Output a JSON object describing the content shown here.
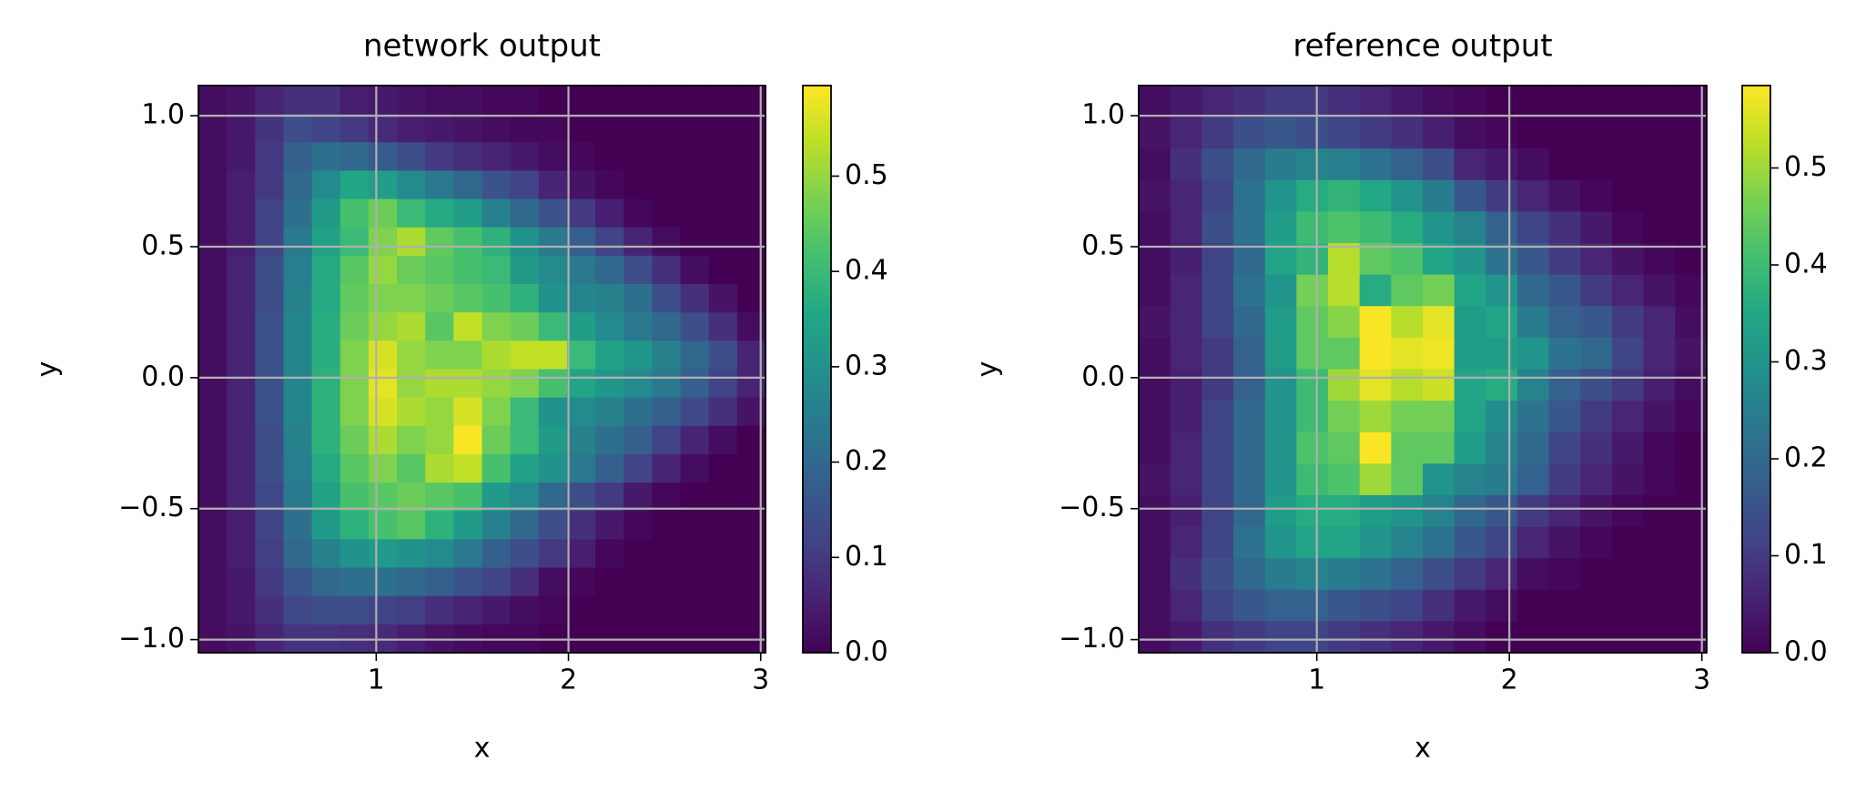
{
  "chart_data": [
    {
      "type": "heatmap",
      "title": "network output",
      "xlabel": "x",
      "ylabel": "y",
      "colormap": "viridis",
      "grid": true,
      "xlim": [
        0.075,
        3.025
      ],
      "ylim": [
        -1.05,
        1.115
      ],
      "zlim": [
        0,
        0.595
      ],
      "xticks": [
        1,
        2,
        3
      ],
      "yticks": [
        {
          "value": -1,
          "label": "−1.0"
        },
        {
          "value": -0.5,
          "label": "−0.5"
        },
        {
          "value": 0,
          "label": "0.0"
        },
        0.5,
        {
          "value": 1,
          "label": "1.0"
        }
      ],
      "cbar_ticks": [
        {
          "value": 0,
          "label": "0.0"
        },
        0.1,
        0.2,
        0.3,
        0.4,
        0.5
      ],
      "z": [
        [
          0.02,
          0.03,
          0.06,
          0.08,
          0.08,
          0.05,
          0.04,
          0.03,
          0.02,
          0.02,
          0.01,
          0.01,
          0,
          0,
          0,
          0,
          0,
          0,
          0,
          0
        ],
        [
          0.02,
          0.04,
          0.09,
          0.14,
          0.12,
          0.1,
          0.07,
          0.05,
          0.04,
          0.03,
          0.02,
          0.01,
          0.01,
          0,
          0,
          0,
          0,
          0,
          0,
          0
        ],
        [
          0.02,
          0.04,
          0.1,
          0.18,
          0.22,
          0.2,
          0.17,
          0.14,
          0.1,
          0.08,
          0.06,
          0.04,
          0.02,
          0.01,
          0,
          0,
          0,
          0,
          0,
          0
        ],
        [
          0.02,
          0.05,
          0.1,
          0.2,
          0.28,
          0.35,
          0.33,
          0.28,
          0.24,
          0.2,
          0.15,
          0.12,
          0.06,
          0.03,
          0.01,
          0,
          0,
          0,
          0,
          0
        ],
        [
          0.02,
          0.05,
          0.12,
          0.22,
          0.32,
          0.42,
          0.46,
          0.4,
          0.36,
          0.33,
          0.26,
          0.2,
          0.15,
          0.1,
          0.05,
          0.01,
          0,
          0,
          0,
          0
        ],
        [
          0.02,
          0.05,
          0.12,
          0.24,
          0.34,
          0.4,
          0.48,
          0.52,
          0.45,
          0.42,
          0.38,
          0.3,
          0.24,
          0.18,
          0.12,
          0.06,
          0.02,
          0,
          0,
          0
        ],
        [
          0.02,
          0.06,
          0.14,
          0.25,
          0.36,
          0.44,
          0.5,
          0.46,
          0.44,
          0.42,
          0.4,
          0.32,
          0.28,
          0.24,
          0.2,
          0.14,
          0.08,
          0.02,
          0,
          0
        ],
        [
          0.02,
          0.06,
          0.14,
          0.26,
          0.36,
          0.45,
          0.48,
          0.48,
          0.46,
          0.44,
          0.42,
          0.38,
          0.3,
          0.27,
          0.26,
          0.22,
          0.14,
          0.08,
          0.03,
          0
        ],
        [
          0.02,
          0.06,
          0.15,
          0.27,
          0.37,
          0.46,
          0.5,
          0.52,
          0.44,
          0.54,
          0.48,
          0.46,
          0.4,
          0.33,
          0.28,
          0.24,
          0.2,
          0.14,
          0.08,
          0.02
        ],
        [
          0.02,
          0.06,
          0.15,
          0.27,
          0.37,
          0.48,
          0.56,
          0.5,
          0.48,
          0.48,
          0.52,
          0.54,
          0.54,
          0.4,
          0.34,
          0.31,
          0.26,
          0.2,
          0.14,
          0.06
        ],
        [
          0.02,
          0.06,
          0.15,
          0.27,
          0.38,
          0.48,
          0.57,
          0.5,
          0.52,
          0.52,
          0.5,
          0.48,
          0.42,
          0.35,
          0.31,
          0.28,
          0.24,
          0.18,
          0.12,
          0.06
        ],
        [
          0.02,
          0.06,
          0.15,
          0.27,
          0.38,
          0.48,
          0.56,
          0.52,
          0.5,
          0.56,
          0.48,
          0.4,
          0.3,
          0.28,
          0.26,
          0.22,
          0.18,
          0.13,
          0.08,
          0.03
        ],
        [
          0.02,
          0.06,
          0.14,
          0.26,
          0.38,
          0.46,
          0.52,
          0.48,
          0.5,
          0.59,
          0.46,
          0.4,
          0.32,
          0.26,
          0.22,
          0.18,
          0.12,
          0.06,
          0.02,
          0
        ],
        [
          0.02,
          0.06,
          0.14,
          0.25,
          0.36,
          0.44,
          0.48,
          0.44,
          0.52,
          0.54,
          0.42,
          0.34,
          0.3,
          0.24,
          0.18,
          0.12,
          0.06,
          0.02,
          0,
          0
        ],
        [
          0.02,
          0.06,
          0.13,
          0.24,
          0.34,
          0.42,
          0.44,
          0.46,
          0.44,
          0.42,
          0.32,
          0.28,
          0.2,
          0.14,
          0.1,
          0.04,
          0.01,
          0,
          0,
          0
        ],
        [
          0.02,
          0.05,
          0.12,
          0.22,
          0.32,
          0.38,
          0.42,
          0.44,
          0.38,
          0.32,
          0.26,
          0.2,
          0.14,
          0.08,
          0.04,
          0.01,
          0,
          0,
          0,
          0
        ],
        [
          0.02,
          0.05,
          0.11,
          0.2,
          0.26,
          0.3,
          0.32,
          0.3,
          0.28,
          0.24,
          0.18,
          0.14,
          0.1,
          0.05,
          0.01,
          0,
          0,
          0,
          0,
          0
        ],
        [
          0.02,
          0.04,
          0.1,
          0.16,
          0.2,
          0.22,
          0.22,
          0.2,
          0.18,
          0.15,
          0.12,
          0.08,
          0.02,
          0.01,
          0,
          0,
          0,
          0,
          0,
          0
        ],
        [
          0.02,
          0.04,
          0.08,
          0.13,
          0.14,
          0.14,
          0.12,
          0.11,
          0.08,
          0.06,
          0.04,
          0.02,
          0.01,
          0,
          0,
          0,
          0,
          0,
          0,
          0
        ],
        [
          0.02,
          0.03,
          0.06,
          0.09,
          0.09,
          0.08,
          0.07,
          0.05,
          0.03,
          0.02,
          0.01,
          0.01,
          0,
          0,
          0,
          0,
          0,
          0,
          0,
          0
        ]
      ]
    },
    {
      "type": "heatmap",
      "title": "reference output",
      "xlabel": "x",
      "ylabel": "y",
      "colormap": "viridis",
      "grid": true,
      "xlim": [
        0.075,
        3.025
      ],
      "ylim": [
        -1.05,
        1.115
      ],
      "zlim": [
        0,
        0.585
      ],
      "xticks": [
        1,
        2,
        3
      ],
      "yticks": [
        {
          "value": -1,
          "label": "−1.0"
        },
        {
          "value": -0.5,
          "label": "−0.5"
        },
        {
          "value": 0,
          "label": "0.0"
        },
        0.5,
        {
          "value": 1,
          "label": "1.0"
        }
      ],
      "cbar_ticks": [
        {
          "value": 0,
          "label": "0.0"
        },
        0.1,
        0.2,
        0.3,
        0.4,
        0.5
      ],
      "z": [
        [
          0.02,
          0.04,
          0.06,
          0.08,
          0.1,
          0.1,
          0.08,
          0.06,
          0.04,
          0.02,
          0.01,
          0,
          0,
          0,
          0,
          0,
          0,
          0
        ],
        [
          0.03,
          0.06,
          0.1,
          0.14,
          0.16,
          0.14,
          0.12,
          0.1,
          0.08,
          0.05,
          0.02,
          0.01,
          0,
          0,
          0,
          0,
          0,
          0
        ],
        [
          0.02,
          0.08,
          0.14,
          0.2,
          0.24,
          0.26,
          0.25,
          0.22,
          0.18,
          0.14,
          0.06,
          0.04,
          0.02,
          0,
          0,
          0,
          0,
          0
        ],
        [
          0.03,
          0.06,
          0.12,
          0.22,
          0.3,
          0.36,
          0.38,
          0.35,
          0.3,
          0.24,
          0.16,
          0.1,
          0.06,
          0.03,
          0.01,
          0,
          0,
          0
        ],
        [
          0.02,
          0.06,
          0.14,
          0.22,
          0.32,
          0.4,
          0.42,
          0.4,
          0.36,
          0.3,
          0.26,
          0.18,
          0.12,
          0.08,
          0.04,
          0.01,
          0,
          0
        ],
        [
          0.02,
          0.05,
          0.12,
          0.2,
          0.34,
          0.38,
          0.52,
          0.44,
          0.42,
          0.34,
          0.3,
          0.22,
          0.16,
          0.1,
          0.06,
          0.03,
          0.01,
          0
        ],
        [
          0.02,
          0.06,
          0.12,
          0.22,
          0.3,
          0.46,
          0.52,
          0.36,
          0.44,
          0.46,
          0.34,
          0.3,
          0.2,
          0.16,
          0.1,
          0.06,
          0.03,
          0.01
        ],
        [
          0.03,
          0.06,
          0.12,
          0.2,
          0.32,
          0.44,
          0.48,
          0.58,
          0.52,
          0.56,
          0.32,
          0.34,
          0.24,
          0.18,
          0.16,
          0.1,
          0.06,
          0.02
        ],
        [
          0.02,
          0.06,
          0.1,
          0.18,
          0.32,
          0.44,
          0.44,
          0.58,
          0.56,
          0.57,
          0.32,
          0.32,
          0.3,
          0.22,
          0.2,
          0.12,
          0.06,
          0.03
        ],
        [
          0.02,
          0.05,
          0.1,
          0.18,
          0.3,
          0.4,
          0.5,
          0.56,
          0.52,
          0.54,
          0.34,
          0.36,
          0.26,
          0.18,
          0.14,
          0.1,
          0.05,
          0.02
        ],
        [
          0.02,
          0.05,
          0.12,
          0.2,
          0.3,
          0.4,
          0.46,
          0.5,
          0.46,
          0.46,
          0.34,
          0.28,
          0.22,
          0.16,
          0.1,
          0.06,
          0.03,
          0.01
        ],
        [
          0.02,
          0.06,
          0.12,
          0.2,
          0.3,
          0.42,
          0.44,
          0.58,
          0.44,
          0.44,
          0.32,
          0.26,
          0.2,
          0.12,
          0.08,
          0.04,
          0.01,
          0
        ],
        [
          0.03,
          0.06,
          0.12,
          0.2,
          0.3,
          0.4,
          0.42,
          0.5,
          0.44,
          0.3,
          0.26,
          0.24,
          0.18,
          0.1,
          0.06,
          0.03,
          0.01,
          0
        ],
        [
          0.02,
          0.05,
          0.12,
          0.2,
          0.32,
          0.36,
          0.36,
          0.32,
          0.3,
          0.26,
          0.2,
          0.16,
          0.1,
          0.06,
          0.03,
          0.01,
          0,
          0
        ],
        [
          0.02,
          0.06,
          0.12,
          0.22,
          0.3,
          0.34,
          0.34,
          0.3,
          0.26,
          0.22,
          0.16,
          0.12,
          0.06,
          0.03,
          0.01,
          0,
          0,
          0
        ],
        [
          0.02,
          0.08,
          0.14,
          0.2,
          0.24,
          0.26,
          0.24,
          0.22,
          0.18,
          0.14,
          0.1,
          0.06,
          0.02,
          0.01,
          0,
          0,
          0,
          0
        ],
        [
          0.02,
          0.06,
          0.12,
          0.16,
          0.18,
          0.18,
          0.16,
          0.14,
          0.12,
          0.08,
          0.04,
          0.02,
          0,
          0,
          0,
          0,
          0,
          0
        ],
        [
          0.02,
          0.04,
          0.08,
          0.1,
          0.12,
          0.12,
          0.1,
          0.08,
          0.06,
          0.04,
          0.02,
          0,
          0,
          0,
          0,
          0,
          0,
          0
        ]
      ]
    }
  ]
}
